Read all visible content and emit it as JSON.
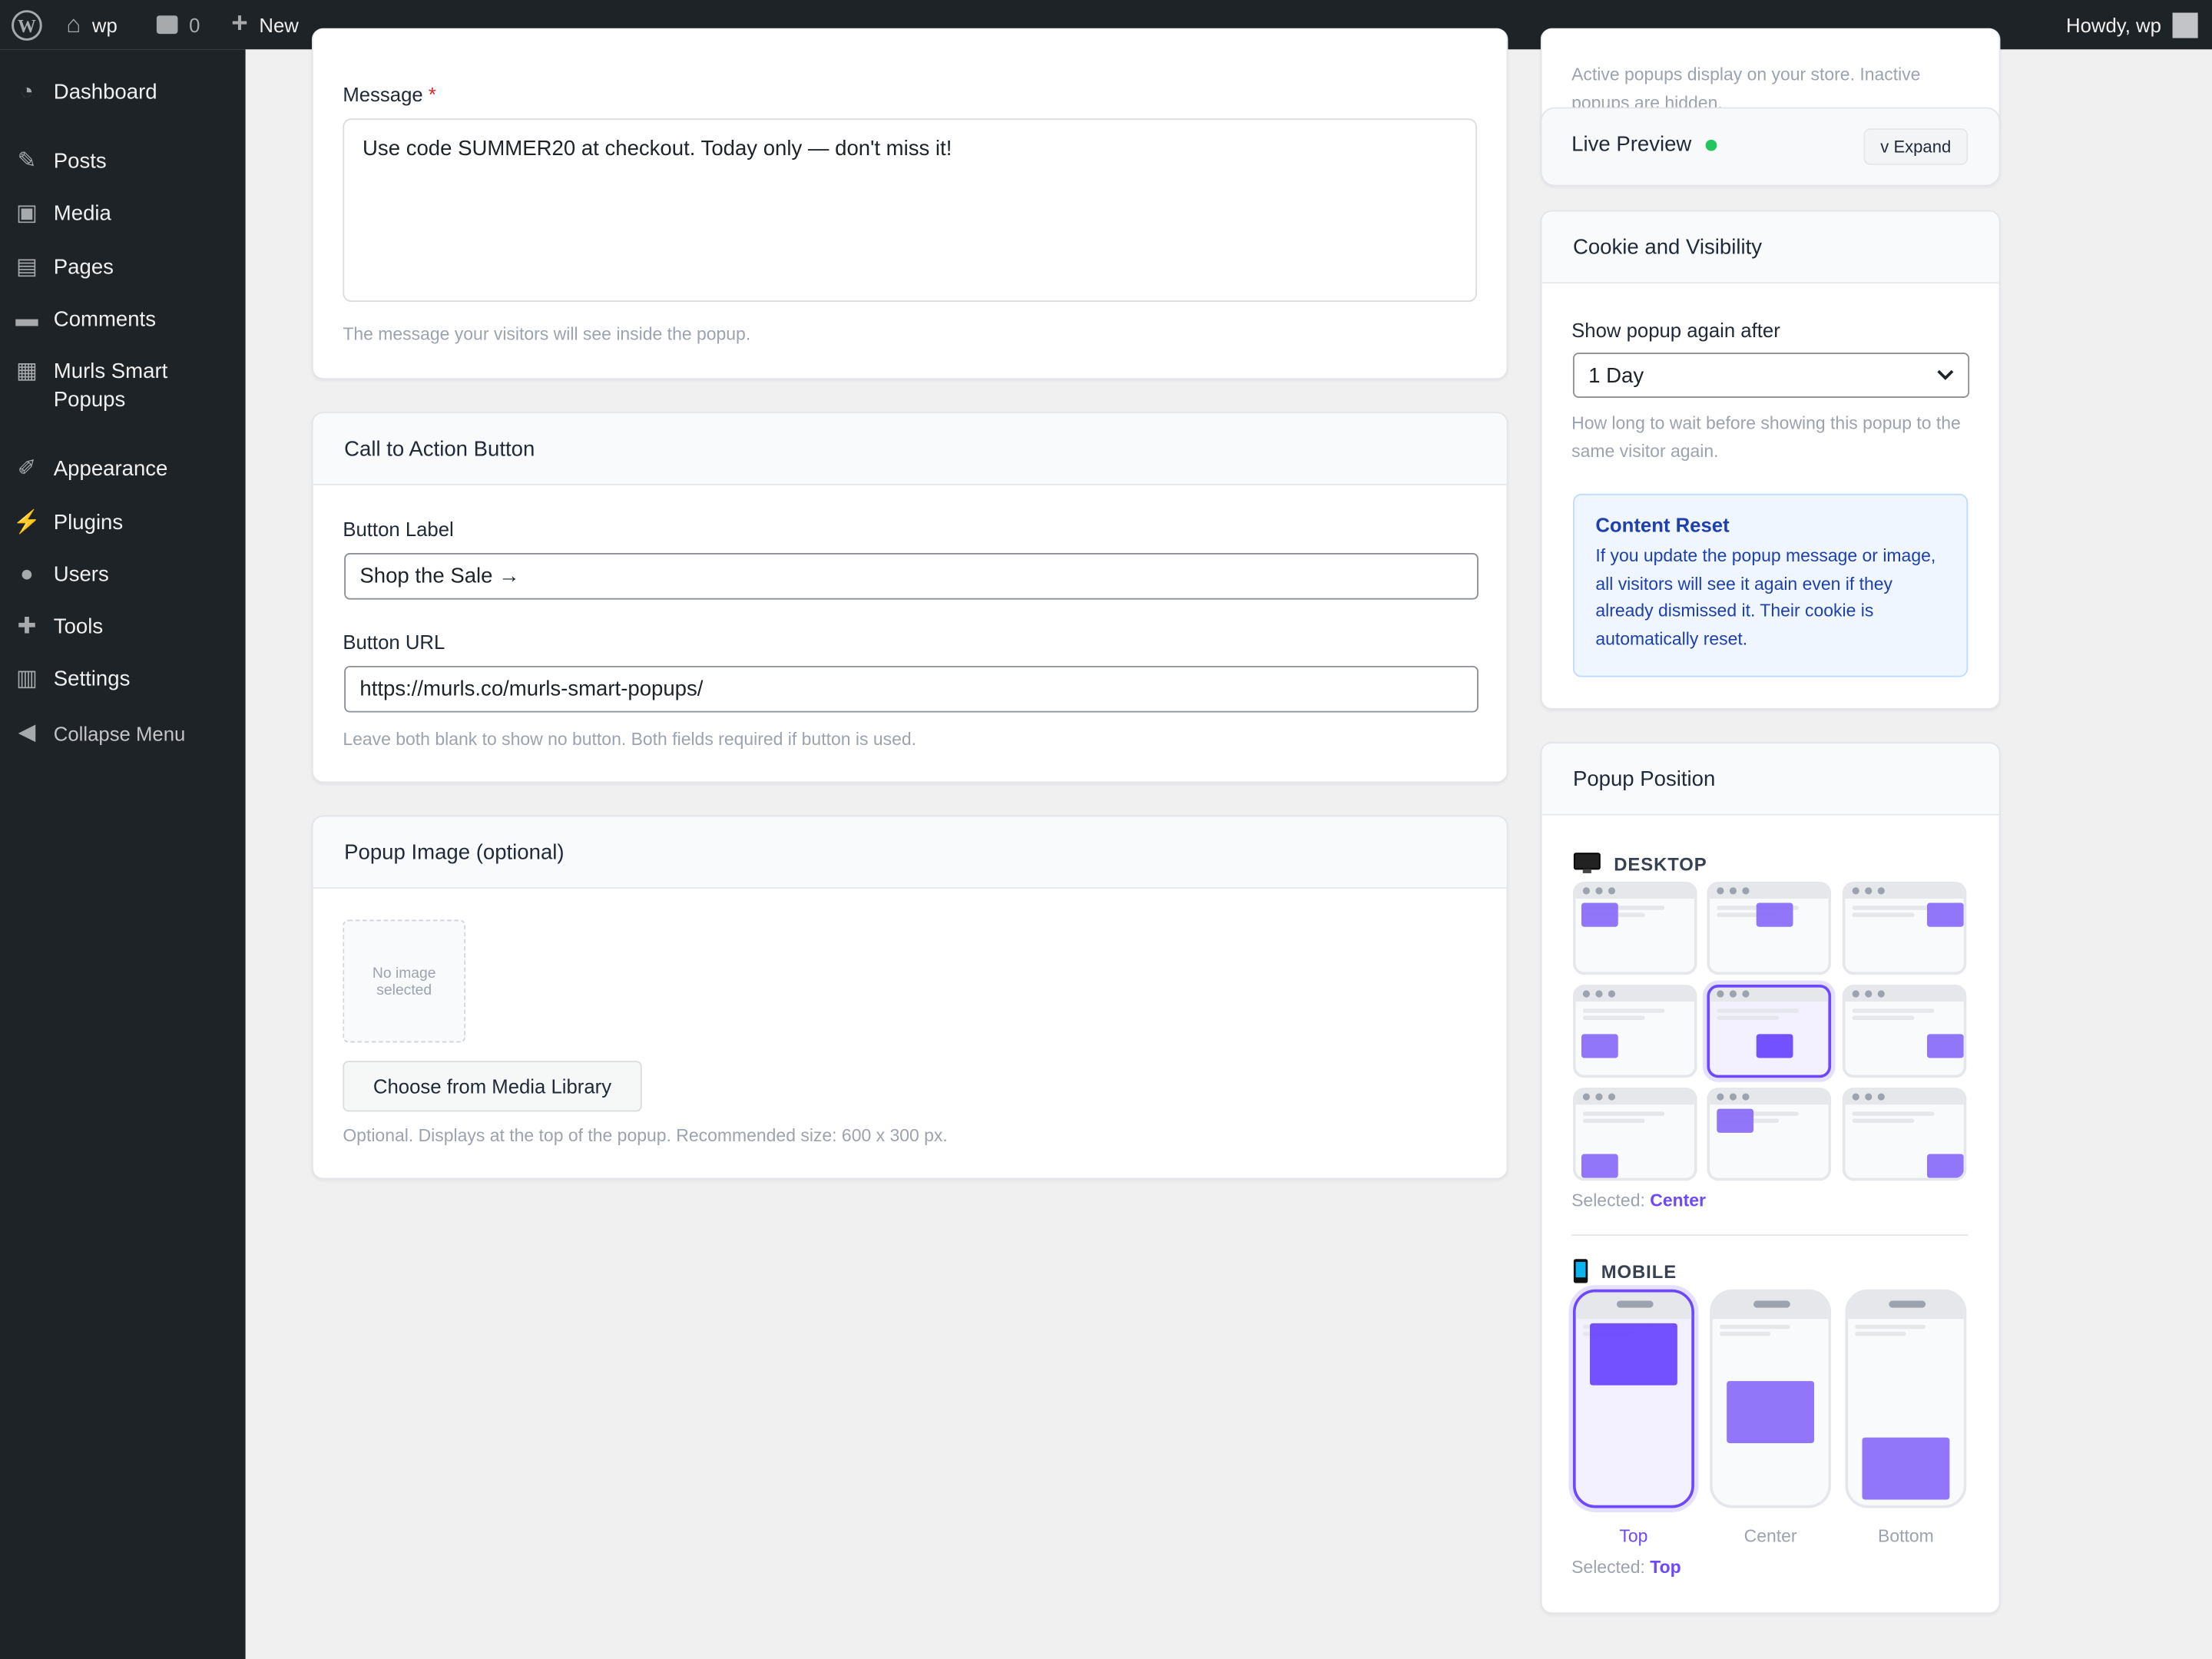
{
  "adminbar": {
    "site": "wp",
    "comments": "0",
    "new": "New",
    "howdy": "Howdy, wp"
  },
  "sidebar": {
    "items": [
      {
        "label": "Dashboard",
        "icon": "dashboard-icon"
      },
      {
        "label": "Posts",
        "icon": "pin-icon"
      },
      {
        "label": "Media",
        "icon": "media-icon"
      },
      {
        "label": "Pages",
        "icon": "pages-icon"
      },
      {
        "label": "Comments",
        "icon": "comment-icon"
      },
      {
        "label": "Murls Smart Popups",
        "icon": "popups-icon"
      },
      {
        "label": "Appearance",
        "icon": "brush-icon"
      },
      {
        "label": "Plugins",
        "icon": "plugin-icon"
      },
      {
        "label": "Users",
        "icon": "user-icon"
      },
      {
        "label": "Tools",
        "icon": "wrench-icon"
      },
      {
        "label": "Settings",
        "icon": "settings-icon"
      },
      {
        "label": "Collapse Menu",
        "icon": "collapse-icon"
      }
    ]
  },
  "message": {
    "label": "Message",
    "required": "*",
    "value": "Use code SUMMER20 at checkout. Today only — don't miss it!",
    "help": "The message your visitors will see inside the popup."
  },
  "cta": {
    "title": "Call to Action Button",
    "button_label": "Button Label",
    "button_label_value": "Shop the Sale →",
    "button_url": "Button URL",
    "button_url_value": "https://murls.co/murls-smart-popups/",
    "help": "Leave both blank to show no button. Both fields required if button is used."
  },
  "image": {
    "title": "Popup Image (optional)",
    "placeholder": "No image selected",
    "choose": "Choose from Media Library",
    "help": "Optional. Displays at the top of the popup. Recommended size: 600 x 300 px."
  },
  "status": {
    "help": "Active popups display on your store. Inactive popups are hidden."
  },
  "preview": {
    "title": "Live Preview",
    "expand": "v Expand",
    "status_color": "#22c55e"
  },
  "cookie": {
    "title": "Cookie and Visibility",
    "label": "Show popup again after",
    "value": "1 Day",
    "help": "How long to wait before showing this popup to the same visitor again.",
    "notice_title": "Content Reset",
    "notice_body": "If you update the popup message or image, all visitors will see it again even if they already dismissed it. Their cookie is automatically reset."
  },
  "position": {
    "title": "Popup Position",
    "desktop": "DESKTOP",
    "selected_prefix": "Selected:",
    "desktop_selected": "Center",
    "mobile": "MOBILE",
    "mobile_options": [
      "Top",
      "Center",
      "Bottom"
    ],
    "mobile_selected": "Top",
    "accent": "#6d48ff"
  }
}
